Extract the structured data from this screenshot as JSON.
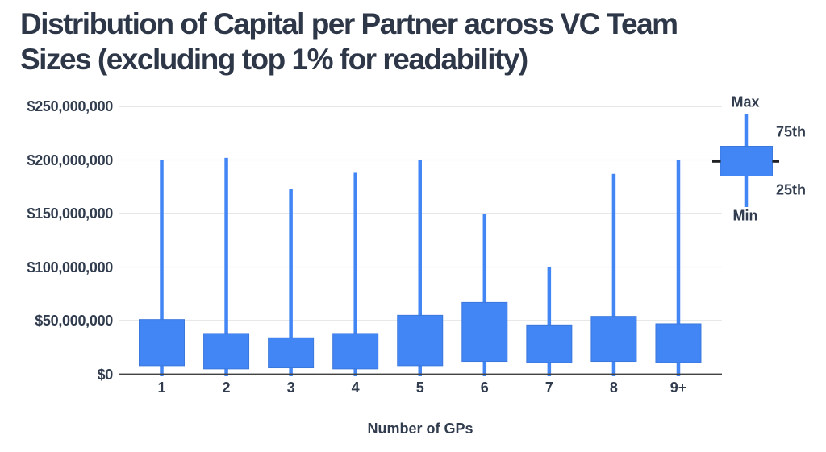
{
  "title": {
    "lines": [
      "Distribution of Capital per Partner across VC Team",
      "Sizes (excluding top 1% for readability)"
    ]
  },
  "chart_data": {
    "type": "boxplot",
    "title": "Distribution of Capital per Partner across VC Team Sizes (excluding top 1% for readability)",
    "xlabel": "Number of GPs",
    "ylabel": "",
    "categories": [
      "1",
      "2",
      "3",
      "4",
      "5",
      "6",
      "7",
      "8",
      "9+"
    ],
    "series": [
      {
        "name": "Capital per Partner",
        "min": [
          0,
          0,
          0,
          0,
          0,
          0,
          0,
          0,
          0
        ],
        "p25": [
          8000000,
          5000000,
          6000000,
          5000000,
          8000000,
          12000000,
          11000000,
          12000000,
          11000000
        ],
        "p75": [
          51000000,
          38000000,
          34000000,
          38000000,
          55000000,
          67000000,
          46000000,
          54000000,
          47000000
        ],
        "max": [
          200000000,
          202000000,
          173000000,
          188000000,
          200000000,
          150000000,
          100000000,
          187000000,
          200000000
        ]
      }
    ],
    "ylim": [
      0,
      250000000
    ],
    "yticks": [
      {
        "value": 0,
        "label": "$0"
      },
      {
        "value": 50000000,
        "label": "$50,000,000"
      },
      {
        "value": 100000000,
        "label": "$100,000,000"
      },
      {
        "value": 150000000,
        "label": "$150,000,000"
      },
      {
        "value": 200000000,
        "label": "$200,000,000"
      },
      {
        "value": 250000000,
        "label": "$250,000,000"
      }
    ],
    "grid": true,
    "legend": {
      "position": "right",
      "max_label": "Max",
      "p75_label": "75th",
      "p25_label": "25th",
      "min_label": "Min"
    }
  },
  "colors": {
    "box_fill": "#4285F4",
    "box_stroke": "#3B78DC",
    "whisker": "#4285F4",
    "gridline": "#D9D9D9",
    "axis_line": "#424242",
    "text": "#313D4F",
    "median_dash": "#202124",
    "background": "#FFFFFF"
  }
}
